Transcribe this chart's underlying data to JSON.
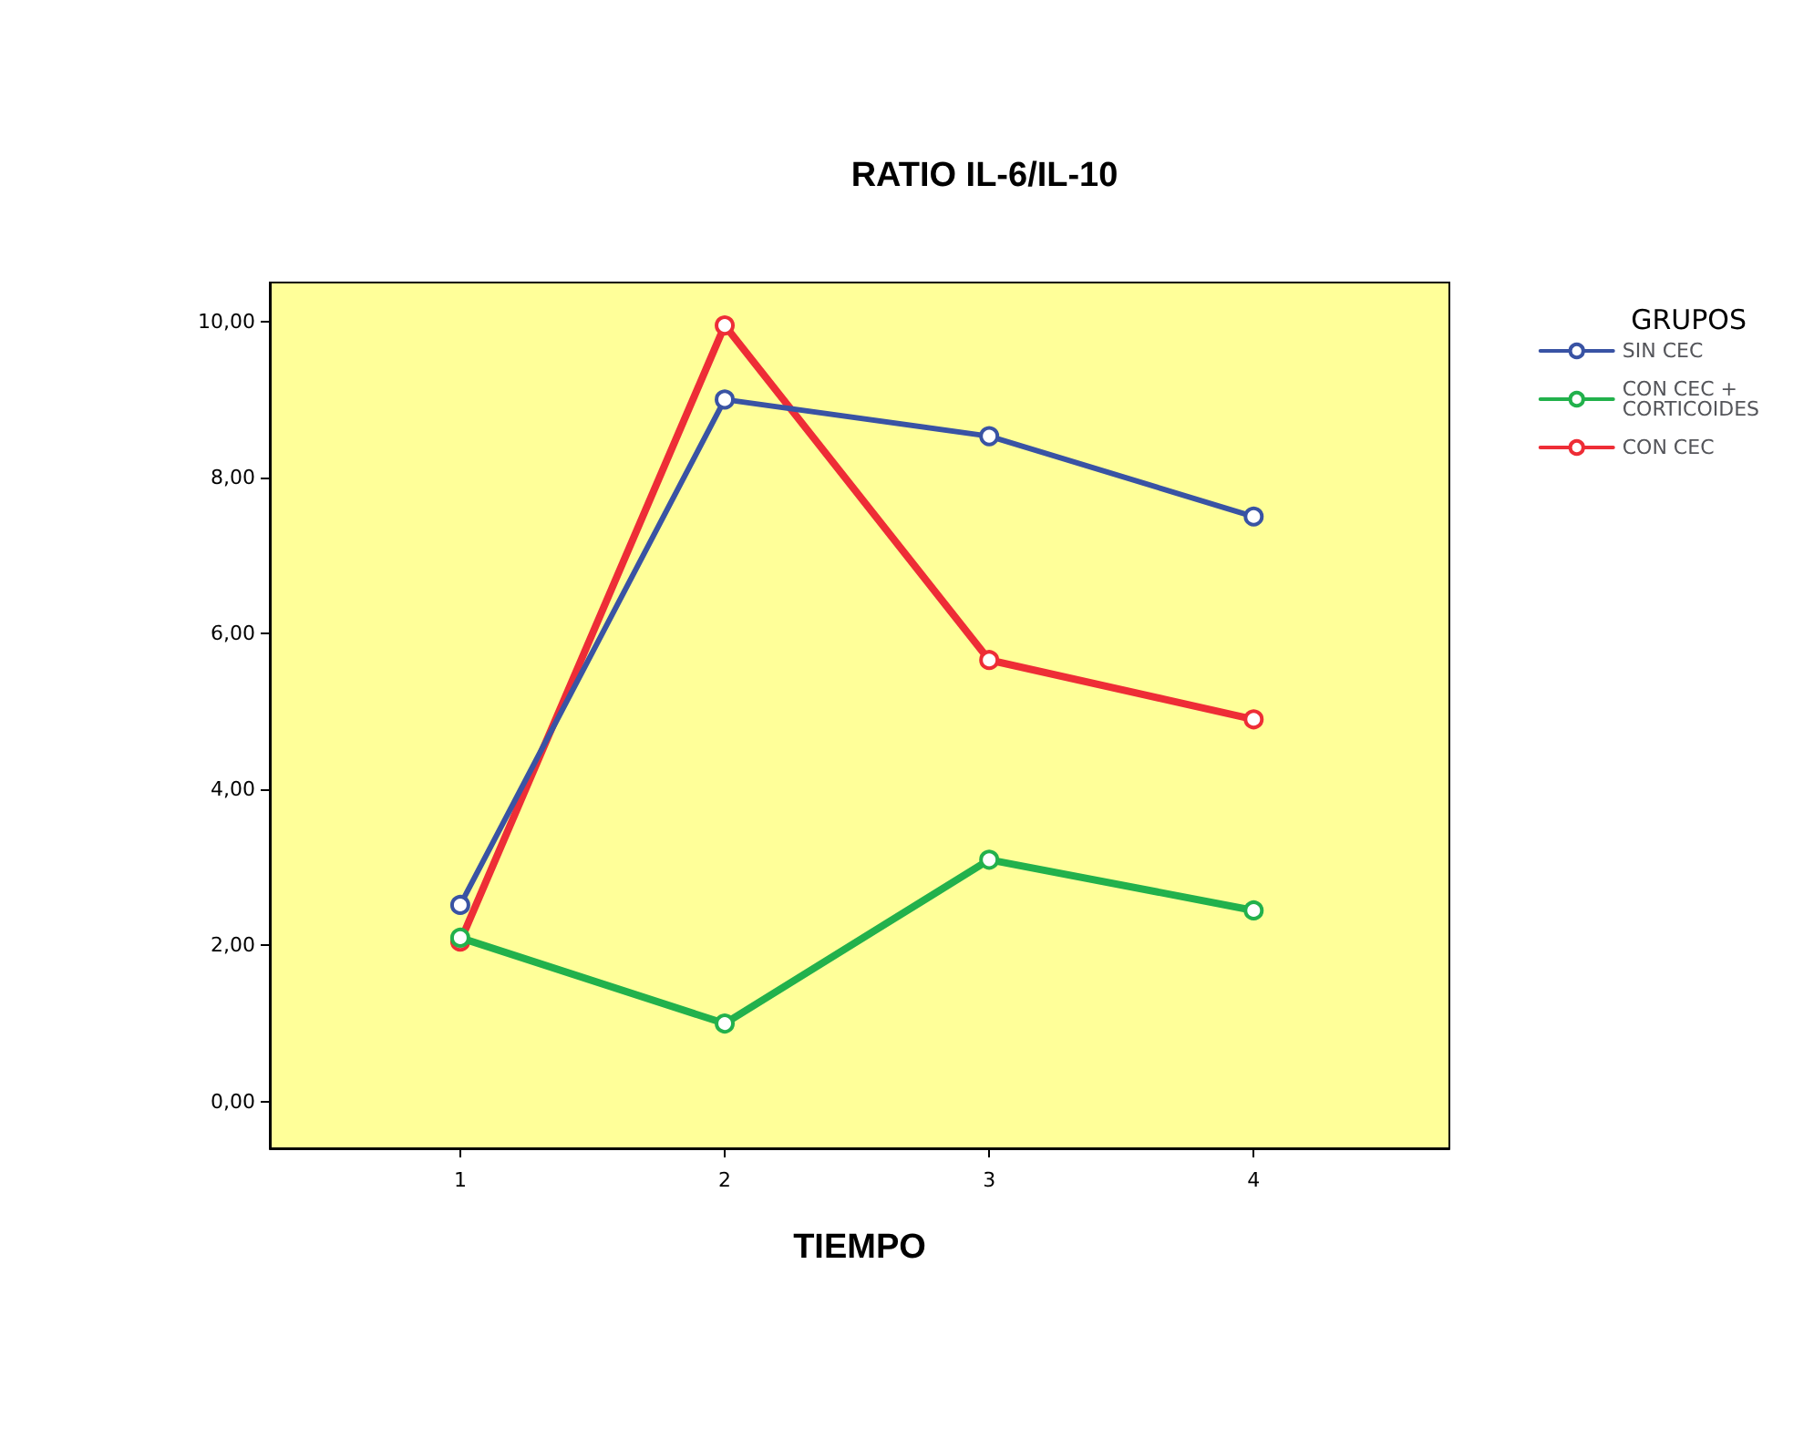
{
  "chart_data": {
    "type": "line",
    "title": "RATIO IL-6/IL-10",
    "xlabel": "TIEMPO",
    "legend_title": "GRUPOS",
    "legend": "right",
    "marker": "circle",
    "grid": false,
    "x": [
      1,
      2,
      3,
      4
    ],
    "xlim": [
      0.28,
      4.74
    ],
    "xticks": [
      1,
      2,
      3,
      4
    ],
    "ylim": [
      -0.6,
      10.5
    ],
    "yticks": [
      {
        "value": 0,
        "label": "0,00"
      },
      {
        "value": 2,
        "label": "2,00"
      },
      {
        "value": 4,
        "label": "4,00"
      },
      {
        "value": 6,
        "label": "6,00"
      },
      {
        "value": 8,
        "label": "8,00"
      },
      {
        "value": 10,
        "label": "10,00"
      }
    ],
    "series": [
      {
        "name": "SIN CEC",
        "color": "#3953a4",
        "values": [
          2.52,
          9.0,
          8.53,
          7.5
        ]
      },
      {
        "name": "CON CEC + CORTICOIDES",
        "color": "#22b14c",
        "values": [
          2.1,
          1.0,
          3.1,
          2.45
        ]
      },
      {
        "name": "CON CEC",
        "color": "#ee2d36",
        "values": [
          2.05,
          9.95,
          5.66,
          4.9
        ]
      }
    ]
  }
}
